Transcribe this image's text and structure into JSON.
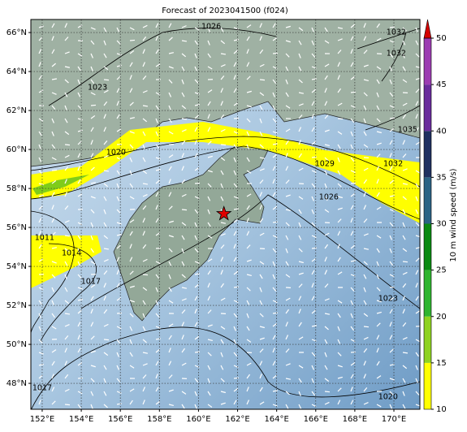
{
  "map": {
    "title": "Forecast of 2023041500 (f024)",
    "lon_range": [
      151.42,
      171.33
    ],
    "lat_range": [
      46.67,
      66.67
    ],
    "lon_ticks": [
      {
        "value": 152,
        "label": "152°E"
      },
      {
        "value": 154,
        "label": "154°E"
      },
      {
        "value": 156,
        "label": "156°E"
      },
      {
        "value": 158,
        "label": "158°E"
      },
      {
        "value": 160,
        "label": "160°E"
      },
      {
        "value": 162,
        "label": "162°E"
      },
      {
        "value": 164,
        "label": "164°E"
      },
      {
        "value": 166,
        "label": "166°E"
      },
      {
        "value": 168,
        "label": "168°E"
      },
      {
        "value": 170,
        "label": "170°E"
      }
    ],
    "lat_ticks": [
      {
        "value": 48,
        "label": "48°N"
      },
      {
        "value": 50,
        "label": "50°N"
      },
      {
        "value": 52,
        "label": "52°N"
      },
      {
        "value": 54,
        "label": "54°N"
      },
      {
        "value": 56,
        "label": "56°N"
      },
      {
        "value": 58,
        "label": "58°N"
      },
      {
        "value": 60,
        "label": "60°N"
      },
      {
        "value": 62,
        "label": "62°N"
      },
      {
        "value": 64,
        "label": "64°N"
      },
      {
        "value": 66,
        "label": "66°N"
      }
    ],
    "grid": true,
    "marker": {
      "lon": 161.3,
      "lat": 56.7,
      "color": "#e00000"
    },
    "isobars": [
      {
        "value": 1026,
        "lon": 160.65,
        "lat": 66.29
      },
      {
        "value": 1032,
        "lon": 170.12,
        "lat": 66.0
      },
      {
        "value": 1032,
        "lon": 170.12,
        "lat": 64.92
      },
      {
        "value": 1023,
        "lon": 154.83,
        "lat": 63.17
      },
      {
        "value": 1020,
        "lon": 155.78,
        "lat": 59.83
      },
      {
        "value": 1035,
        "lon": 170.7,
        "lat": 61.0
      },
      {
        "value": 1029,
        "lon": 166.46,
        "lat": 59.25
      },
      {
        "value": 1032,
        "lon": 169.96,
        "lat": 59.25
      },
      {
        "value": 1026,
        "lon": 166.67,
        "lat": 57.54
      },
      {
        "value": 1011,
        "lon": 152.12,
        "lat": 55.46
      },
      {
        "value": 1014,
        "lon": 153.5,
        "lat": 54.67
      },
      {
        "value": 1017,
        "lon": 154.49,
        "lat": 53.21
      },
      {
        "value": 1023,
        "lon": 169.7,
        "lat": 52.33
      },
      {
        "value": 1020,
        "lon": 169.7,
        "lat": 47.29
      },
      {
        "value": 1017,
        "lon": 152.0,
        "lat": 47.75
      }
    ],
    "colorbar": {
      "label": "10 m wind speed (m/s)",
      "range": [
        10,
        50
      ],
      "ticks": [
        10,
        15,
        20,
        25,
        30,
        35,
        40,
        45,
        50
      ],
      "colors": [
        "#ffff00",
        "#8fd21f",
        "#2fb52f",
        "#0b8a12",
        "#2b6385",
        "#1f3060",
        "#6a2c9c",
        "#9c3cb2"
      ],
      "extend_color": "#d40000"
    }
  }
}
